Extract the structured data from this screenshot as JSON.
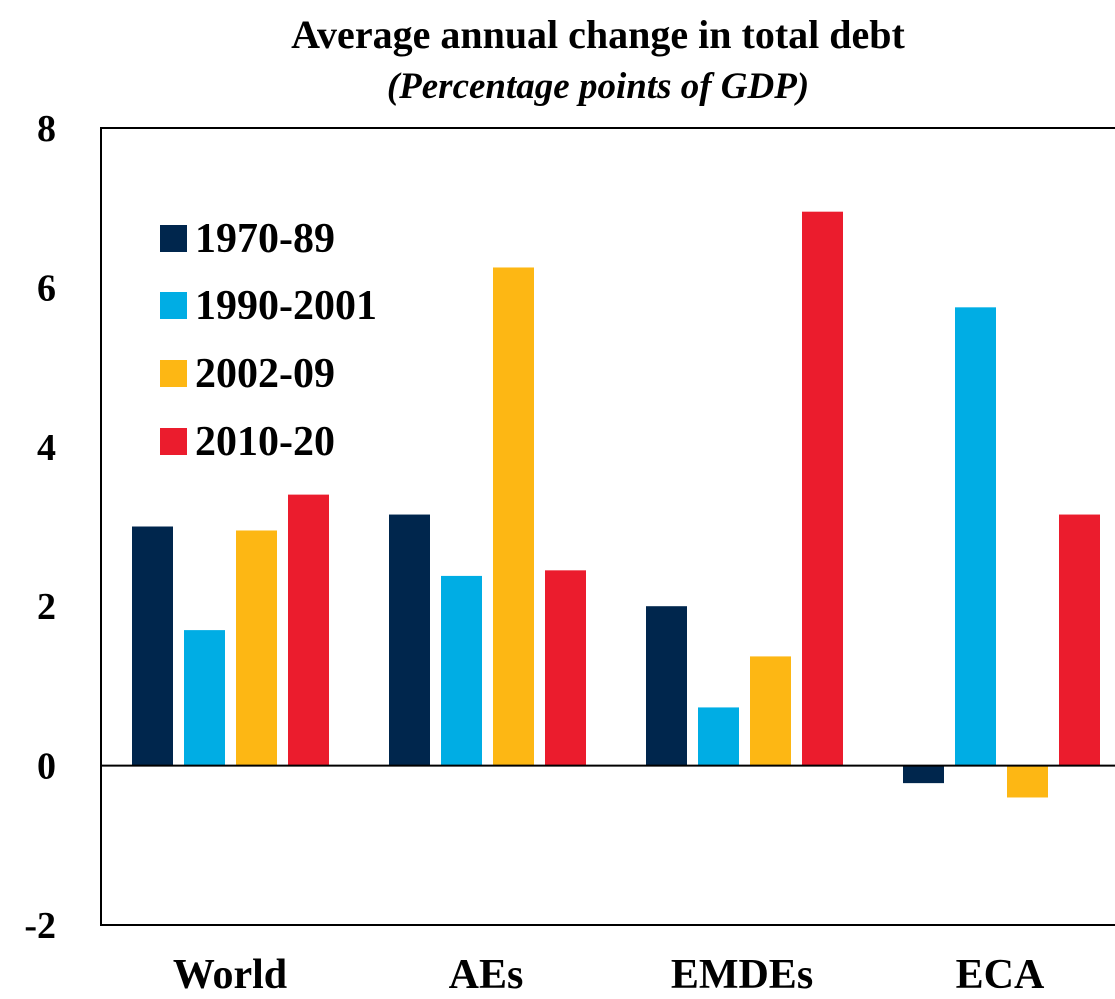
{
  "chart_data": {
    "type": "bar",
    "title": "Average annual change in total debt",
    "subtitle": "(Percentage points of GDP)",
    "categories": [
      "World",
      "AEs",
      "EMDEs",
      "ECA"
    ],
    "series": [
      {
        "name": "1970-89",
        "color": "#00264d",
        "values": [
          3.0,
          3.15,
          2.0,
          -0.22
        ]
      },
      {
        "name": "1990-2001",
        "color": "#00ade4",
        "values": [
          1.7,
          2.38,
          0.73,
          5.75
        ]
      },
      {
        "name": "2002-09",
        "color": "#fdb714",
        "values": [
          2.95,
          6.25,
          1.37,
          -0.4
        ]
      },
      {
        "name": "2010-20",
        "color": "#eb1c2d",
        "values": [
          3.4,
          2.45,
          6.95,
          3.15
        ]
      }
    ],
    "ylim": [
      -2,
      8
    ],
    "yticks": [
      "8",
      "6",
      "4",
      "2",
      "0",
      "-2"
    ],
    "ytick_values": [
      8,
      6,
      4,
      2,
      0,
      -2
    ],
    "legend_position": "top-left",
    "grid": false
  }
}
